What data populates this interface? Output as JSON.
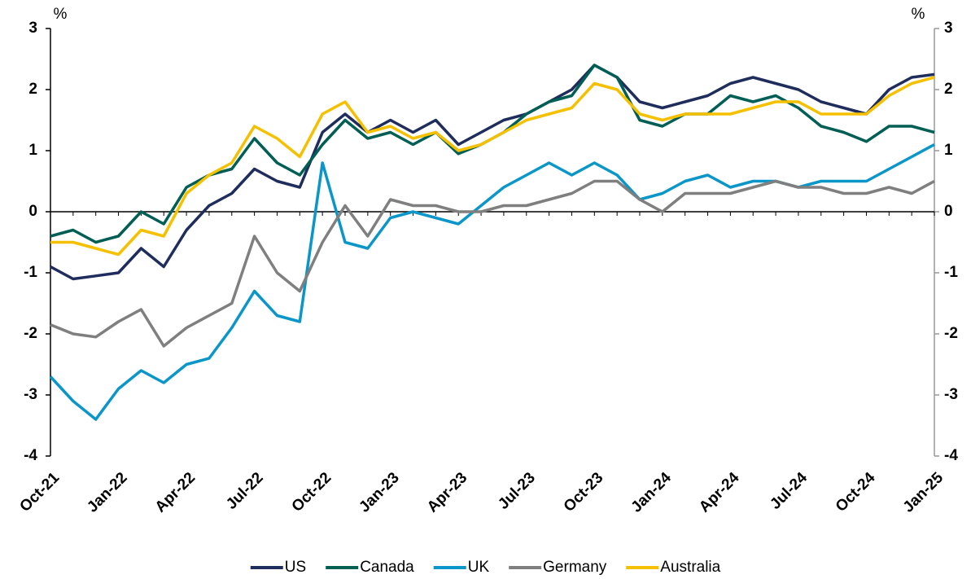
{
  "chart_data": {
    "type": "line",
    "y_label": "%",
    "y2_label": "%",
    "categories": [
      "Oct-21",
      null,
      null,
      "Jan-22",
      null,
      null,
      "Apr-22",
      null,
      null,
      "Jul-22",
      null,
      null,
      "Oct-22",
      null,
      null,
      "Jan-23",
      null,
      null,
      "Apr-23",
      null,
      null,
      "Jul-23",
      null,
      null,
      "Oct-23",
      null,
      null,
      "Jan-24",
      null,
      null,
      "Apr-24",
      null,
      null,
      "Jul-24",
      null,
      null,
      "Oct-24",
      null,
      null,
      "Jan-25"
    ],
    "series": [
      {
        "name": "US",
        "color": "#1f2d5c",
        "values": [
          -0.9,
          -1.1,
          -1.05,
          -1.0,
          -0.6,
          -0.9,
          -0.3,
          0.1,
          0.3,
          0.7,
          0.5,
          0.4,
          1.3,
          1.6,
          1.3,
          1.5,
          1.3,
          1.5,
          1.1,
          1.3,
          1.5,
          1.6,
          1.8,
          2.0,
          2.4,
          2.2,
          1.8,
          1.7,
          1.8,
          1.9,
          2.1,
          2.2,
          2.1,
          2.0,
          1.8,
          1.7,
          1.6,
          2.0,
          2.2,
          2.25
        ]
      },
      {
        "name": "Canada",
        "color": "#005f54",
        "values": [
          -0.4,
          -0.3,
          -0.5,
          -0.4,
          0.0,
          -0.2,
          0.4,
          0.6,
          0.7,
          1.2,
          0.8,
          0.6,
          1.1,
          1.5,
          1.2,
          1.3,
          1.1,
          1.3,
          0.95,
          1.1,
          1.3,
          1.6,
          1.8,
          1.9,
          2.4,
          2.2,
          1.5,
          1.4,
          1.6,
          1.6,
          1.9,
          1.8,
          1.9,
          1.7,
          1.4,
          1.3,
          1.15,
          1.4,
          1.4,
          1.3
        ]
      },
      {
        "name": "UK",
        "color": "#0a96c8",
        "values": [
          -2.7,
          -3.1,
          -3.4,
          -2.9,
          -2.6,
          -2.8,
          -2.5,
          -2.4,
          -1.9,
          -1.3,
          -1.7,
          -1.8,
          0.8,
          -0.5,
          -0.6,
          -0.1,
          0.0,
          -0.1,
          -0.2,
          0.1,
          0.4,
          0.6,
          0.8,
          0.6,
          0.8,
          0.6,
          0.2,
          0.3,
          0.5,
          0.6,
          0.4,
          0.5,
          0.5,
          0.4,
          0.5,
          0.5,
          0.5,
          0.7,
          0.9,
          1.1
        ]
      },
      {
        "name": "Germany",
        "color": "#7f7f7f",
        "values": [
          -1.85,
          -2.0,
          -2.05,
          -1.8,
          -1.6,
          -2.2,
          -1.9,
          -1.7,
          -1.5,
          -0.4,
          -1.0,
          -1.3,
          -0.5,
          0.1,
          -0.4,
          0.2,
          0.1,
          0.1,
          0.0,
          0.0,
          0.1,
          0.1,
          0.2,
          0.3,
          0.5,
          0.5,
          0.2,
          0.0,
          0.3,
          0.3,
          0.3,
          0.4,
          0.5,
          0.4,
          0.4,
          0.3,
          0.3,
          0.4,
          0.3,
          0.5
        ]
      },
      {
        "name": "Australia",
        "color": "#f5c000",
        "values": [
          -0.5,
          -0.5,
          -0.6,
          -0.7,
          -0.3,
          -0.4,
          0.3,
          0.6,
          0.8,
          1.4,
          1.2,
          0.9,
          1.6,
          1.8,
          1.3,
          1.4,
          1.2,
          1.3,
          1.0,
          1.1,
          1.3,
          1.5,
          1.6,
          1.7,
          2.1,
          2.0,
          1.6,
          1.5,
          1.6,
          1.6,
          1.6,
          1.7,
          1.8,
          1.8,
          1.6,
          1.6,
          1.6,
          1.9,
          2.1,
          2.2
        ]
      }
    ],
    "ylim": [
      -4,
      3
    ],
    "yticks": [
      -4,
      -3,
      -2,
      -1,
      0,
      1,
      2,
      3
    ],
    "y2lim": [
      -4,
      3
    ],
    "y2ticks": [
      -4,
      -3,
      -2,
      -1,
      0,
      1,
      2,
      3
    ],
    "grid": false,
    "legend": "bottom"
  }
}
